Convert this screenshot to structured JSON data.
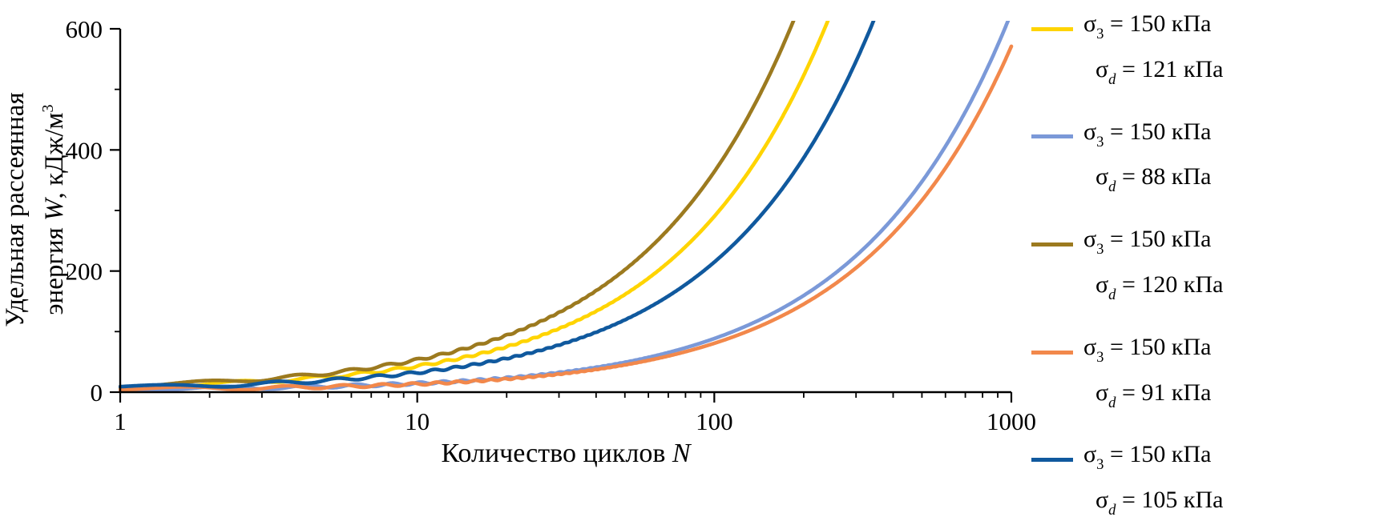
{
  "figure": {
    "xlabel_prefix": "Количество циклов ",
    "xlabel_var": "N",
    "ylabel_line1": "Удельная рассеянная",
    "ylabel_line2_prefix": "энергия ",
    "ylabel_var": "W",
    "ylabel_line2_units": ", кДж/м",
    "ylabel_sup": "3"
  },
  "chart_data": {
    "type": "line",
    "title": "",
    "xlabel": "Количество циклов N",
    "ylabel": "Удельная рассеянная энергия W, кДж/м³",
    "x_scale": "log",
    "xlim": [
      1,
      1000
    ],
    "ylim": [
      0,
      600
    ],
    "x_ticks": [
      "1",
      "10",
      "100",
      "1000"
    ],
    "y_ticks": [
      "0",
      "200",
      "400",
      "600"
    ],
    "y_minor_ticks": [
      100,
      300,
      500
    ],
    "grid": false,
    "legend_position": "right-outside",
    "axis_color": "#000000",
    "series": [
      {
        "label": "σ3 = 150 кПа, σd = 121 кПа",
        "legend_line1": {
          "sym": "σ",
          "sub": "3",
          "rest": " = 150 кПа"
        },
        "legend_line2": {
          "sym": "σ",
          "sub": "d",
          "rest": " = 121 кПа"
        },
        "color": "#FFD400",
        "model": {
          "n_at_w600": 235,
          "exponent": 0.85
        },
        "points": [
          [
            1,
            5.8
          ],
          [
            2,
            10.4
          ],
          [
            5,
            22.7
          ],
          [
            10,
            41
          ],
          [
            20,
            74
          ],
          [
            50,
            161
          ],
          [
            100,
            290
          ],
          [
            200,
            523
          ],
          [
            235,
            600
          ]
        ]
      },
      {
        "label": "σ3 = 150 кПа, σd = 88 кПа",
        "legend_line1": {
          "sym": "σ",
          "sub": "3",
          "rest": " = 150 кПа"
        },
        "legend_line2": {
          "sym": "σ",
          "sub": "d",
          "rest": " = 88 кПа"
        },
        "color": "#7B99D8",
        "model": {
          "n_at_w600": 950,
          "exponent": 0.85
        },
        "points": [
          [
            1,
            1.8
          ],
          [
            2,
            3.2
          ],
          [
            5,
            6.9
          ],
          [
            10,
            12.5
          ],
          [
            20,
            22.5
          ],
          [
            50,
            49
          ],
          [
            100,
            89
          ],
          [
            200,
            160
          ],
          [
            500,
            348
          ],
          [
            950,
            600
          ]
        ]
      },
      {
        "label": "σ3 = 150 кПа, σd = 120 кПа",
        "legend_line1": {
          "sym": "σ",
          "sub": "3",
          "rest": " = 150 кПа"
        },
        "legend_line2": {
          "sym": "σ",
          "sub": "d",
          "rest": " = 120 кПа"
        },
        "color": "#9C7A1F",
        "model": {
          "n_at_w600": 180,
          "exponent": 0.85
        },
        "points": [
          [
            1,
            7.3
          ],
          [
            2,
            13.1
          ],
          [
            5,
            28.5
          ],
          [
            10,
            51
          ],
          [
            20,
            93
          ],
          [
            50,
            202
          ],
          [
            100,
            364
          ],
          [
            180,
            600
          ]
        ]
      },
      {
        "label": "σ3 = 150 кПа, σd = 91 кПа",
        "legend_line1": {
          "sym": "σ",
          "sub": "3",
          "rest": " = 150 кПа"
        },
        "legend_line2": {
          "sym": "σ",
          "sub": "d",
          "rest": " = 91 кПа"
        },
        "color": "#F2884B",
        "model": {
          "n_at_w600": 1060,
          "exponent": 0.85
        },
        "points": [
          [
            1,
            1.6
          ],
          [
            2,
            2.9
          ],
          [
            5,
            6.3
          ],
          [
            10,
            11.4
          ],
          [
            20,
            20.5
          ],
          [
            50,
            45
          ],
          [
            100,
            80
          ],
          [
            200,
            145
          ],
          [
            500,
            317
          ],
          [
            1000,
            571
          ]
        ]
      },
      {
        "label": "σ3 = 150 кПа, σd = 105 кПа",
        "legend_line1": {
          "sym": "σ",
          "sub": "3",
          "rest": " = 150 кПа"
        },
        "legend_line2": {
          "sym": "σ",
          "sub": "d",
          "rest": " = 105 кПа"
        },
        "color": "#10599E",
        "model": {
          "n_at_w600": 335,
          "exponent": 0.85
        },
        "points": [
          [
            1,
            4.3
          ],
          [
            2,
            7.7
          ],
          [
            5,
            16.8
          ],
          [
            10,
            30
          ],
          [
            20,
            55
          ],
          [
            50,
            119
          ],
          [
            100,
            215
          ],
          [
            200,
            387
          ],
          [
            335,
            600
          ]
        ]
      }
    ]
  }
}
